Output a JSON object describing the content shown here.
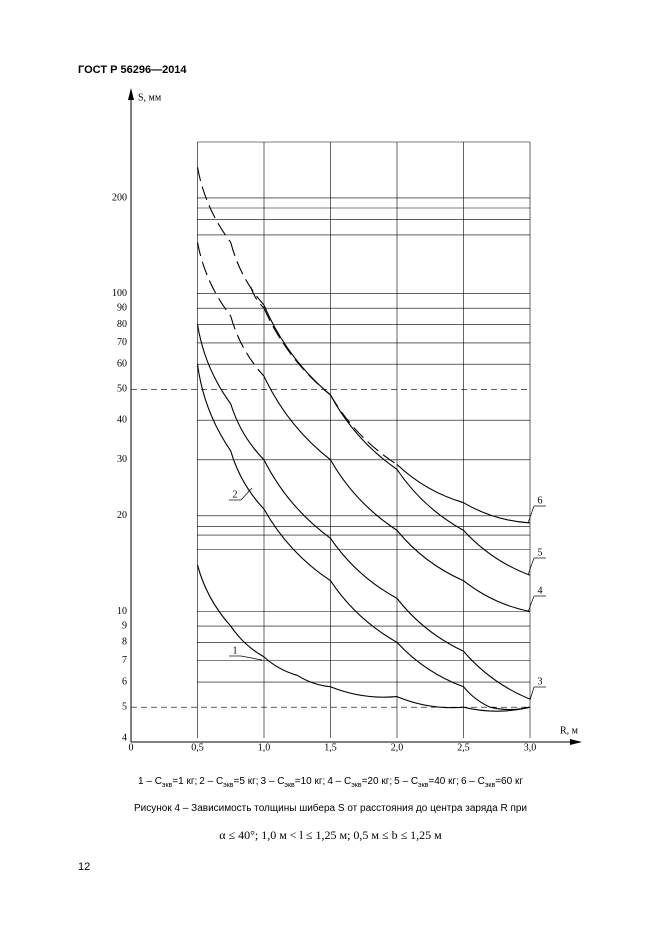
{
  "header": {
    "title": "ГОСТ Р 56296—2014"
  },
  "chart_data": {
    "type": "line",
    "y_scale": "log",
    "grid": true,
    "y_label": "S, мм",
    "x_label": "R, м",
    "xlim": [
      0,
      3.0
    ],
    "xticks": [
      0,
      {
        "value": 0.5,
        "label": "0,5"
      },
      {
        "value": 1.0,
        "label": "1,0"
      },
      {
        "value": 1.5,
        "label": "1,5"
      },
      {
        "value": 2.0,
        "label": "2,0"
      },
      {
        "value": 2.5,
        "label": "2,5"
      },
      {
        "value": 3.0,
        "label": "3,0"
      }
    ],
    "ylim": [
      4,
      300
    ],
    "yticks": [
      4,
      5,
      6,
      7,
      8,
      9,
      10,
      20,
      30,
      40,
      50,
      60,
      70,
      80,
      90,
      100,
      200
    ],
    "minor_yticks": [
      300,
      186,
      171,
      153,
      18.5,
      17.4,
      15.7
    ],
    "dashed_gridlines": [
      50,
      5
    ],
    "series": [
      {
        "name": "1",
        "color": "#000000",
        "line_style": "solid",
        "x": [
          0.5,
          0.75,
          1.0,
          1.25,
          1.5,
          2.0,
          2.5,
          3.0
        ],
        "values": [
          14,
          9,
          7.2,
          6.3,
          5.8,
          5.4,
          5.0,
          5.0
        ]
      },
      {
        "name": "2",
        "color": "#000000",
        "line_style": "solid",
        "x": [
          0.5,
          0.75,
          1.0,
          1.5,
          2.0,
          2.5,
          2.7,
          3.0
        ],
        "values": [
          60,
          32,
          21,
          12.5,
          8,
          5.8,
          5.0,
          5.0
        ]
      },
      {
        "name": "3",
        "color": "#000000",
        "line_style": "solid",
        "x": [
          0.5,
          0.75,
          1.0,
          1.5,
          2.0,
          2.5,
          3.0
        ],
        "values": [
          80,
          45,
          30,
          17,
          11,
          7.5,
          5.3
        ]
      },
      {
        "name": "4",
        "color": "#000000",
        "line_style": "dashed-start",
        "x": [
          0.5,
          0.75,
          1.0,
          1.5,
          2.0,
          2.5,
          3.0
        ],
        "values": [
          145,
          85,
          55,
          30,
          18,
          12.5,
          10
        ]
      },
      {
        "name": "5",
        "color": "#000000",
        "line_style": "dashed-start",
        "x": [
          0.5,
          0.75,
          1.0,
          1.5,
          2.0,
          2.5,
          3.0
        ],
        "values": [
          250,
          145,
          92,
          48,
          28,
          18,
          13
        ]
      },
      {
        "name": "6",
        "color": "#000000",
        "line_style": "dashed-start",
        "x": [
          0.9,
          1.0,
          1.5,
          2.0,
          2.5,
          3.0
        ],
        "values": [
          105,
          90,
          48,
          29,
          22,
          19
        ]
      }
    ]
  },
  "legend_items": [
    {
      "lead": "1 – C",
      "sub": "экв",
      "rest": "=1 кг;"
    },
    {
      "lead": "2 – C",
      "sub": "экв",
      "rest": "=5 кг;"
    },
    {
      "lead": "3 – C",
      "sub": "экв",
      "rest": "=10 кг;"
    },
    {
      "lead": "4 – C",
      "sub": "экв",
      "rest": "=20 кг;"
    },
    {
      "lead": "5 – C",
      "sub": "экв",
      "rest": "=40 кг;"
    },
    {
      "lead": "6 – C",
      "sub": "экв",
      "rest": "=60 кг"
    }
  ],
  "caption": "Рисунок 4 – Зависимость толщины шибера S от расстояния до центра заряда R при",
  "condition": "α ≤ 40°; 1,0 м < l ≤ 1,25 м; 0,5 м ≤ b ≤ 1,25 м",
  "page_number": "12"
}
